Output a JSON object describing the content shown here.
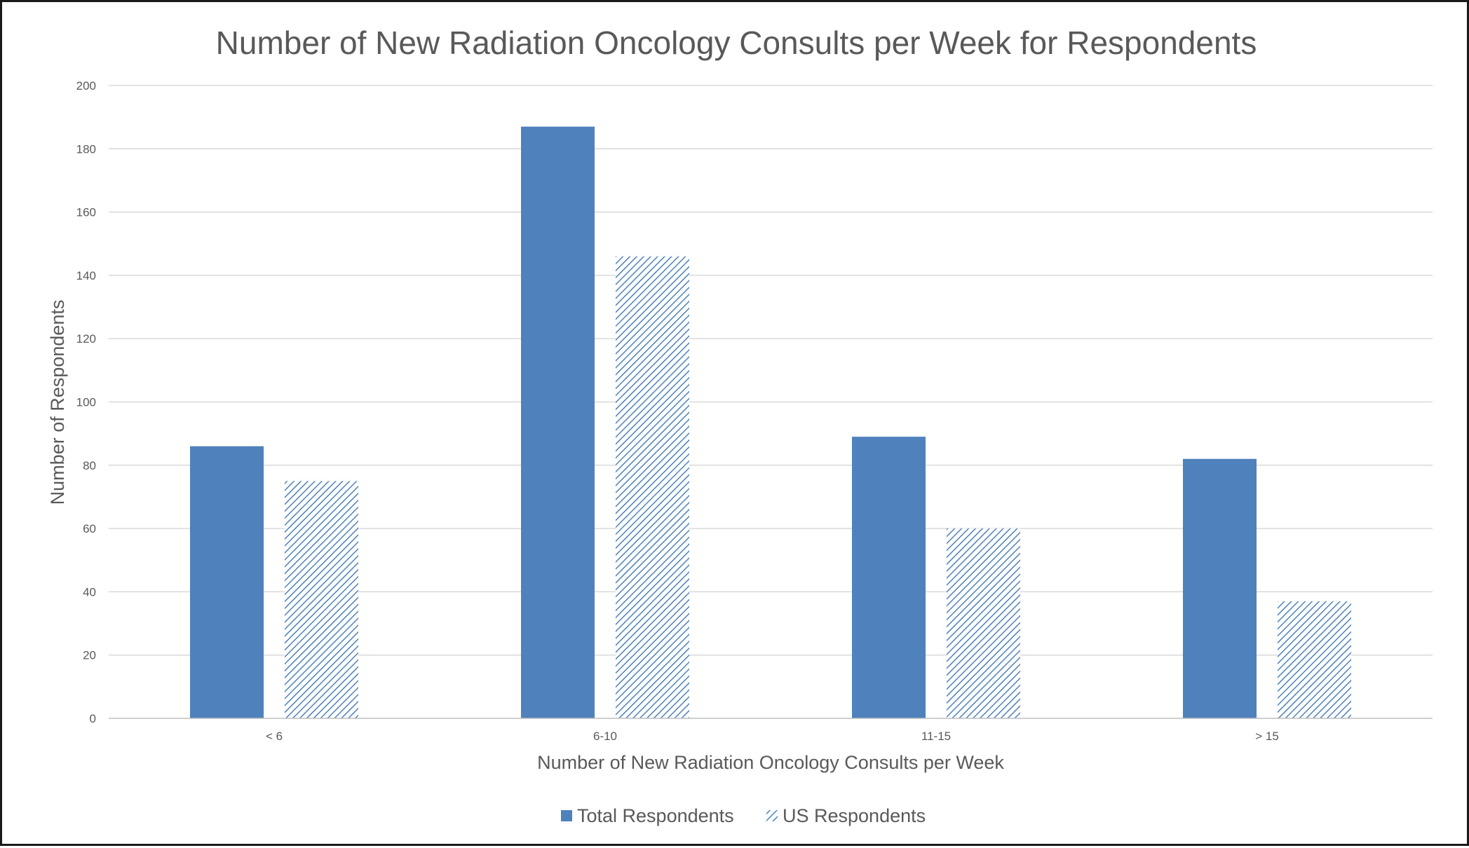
{
  "chart_data": {
    "type": "bar",
    "title": "Number of New Radiation Oncology Consults per Week for Respondents",
    "xlabel": "Number of New Radiation Oncology Consults per Week",
    "ylabel": "Number of Respondents",
    "categories": [
      "< 6",
      "6-10",
      "11-15",
      "> 15"
    ],
    "series": [
      {
        "name": "Total Respondents",
        "values": [
          86,
          187,
          89,
          82
        ],
        "color": "#4F81BD",
        "fill": "solid"
      },
      {
        "name": "US Respondents",
        "values": [
          75,
          146,
          60,
          37
        ],
        "color": "#4F81BD",
        "fill": "diagonal-hatch"
      }
    ],
    "ylim": [
      0,
      200
    ],
    "yticks": [
      "0",
      "20",
      "40",
      "60",
      "80",
      "100",
      "120",
      "140",
      "160",
      "180",
      "200"
    ],
    "grid": true,
    "legend": "bottom"
  }
}
